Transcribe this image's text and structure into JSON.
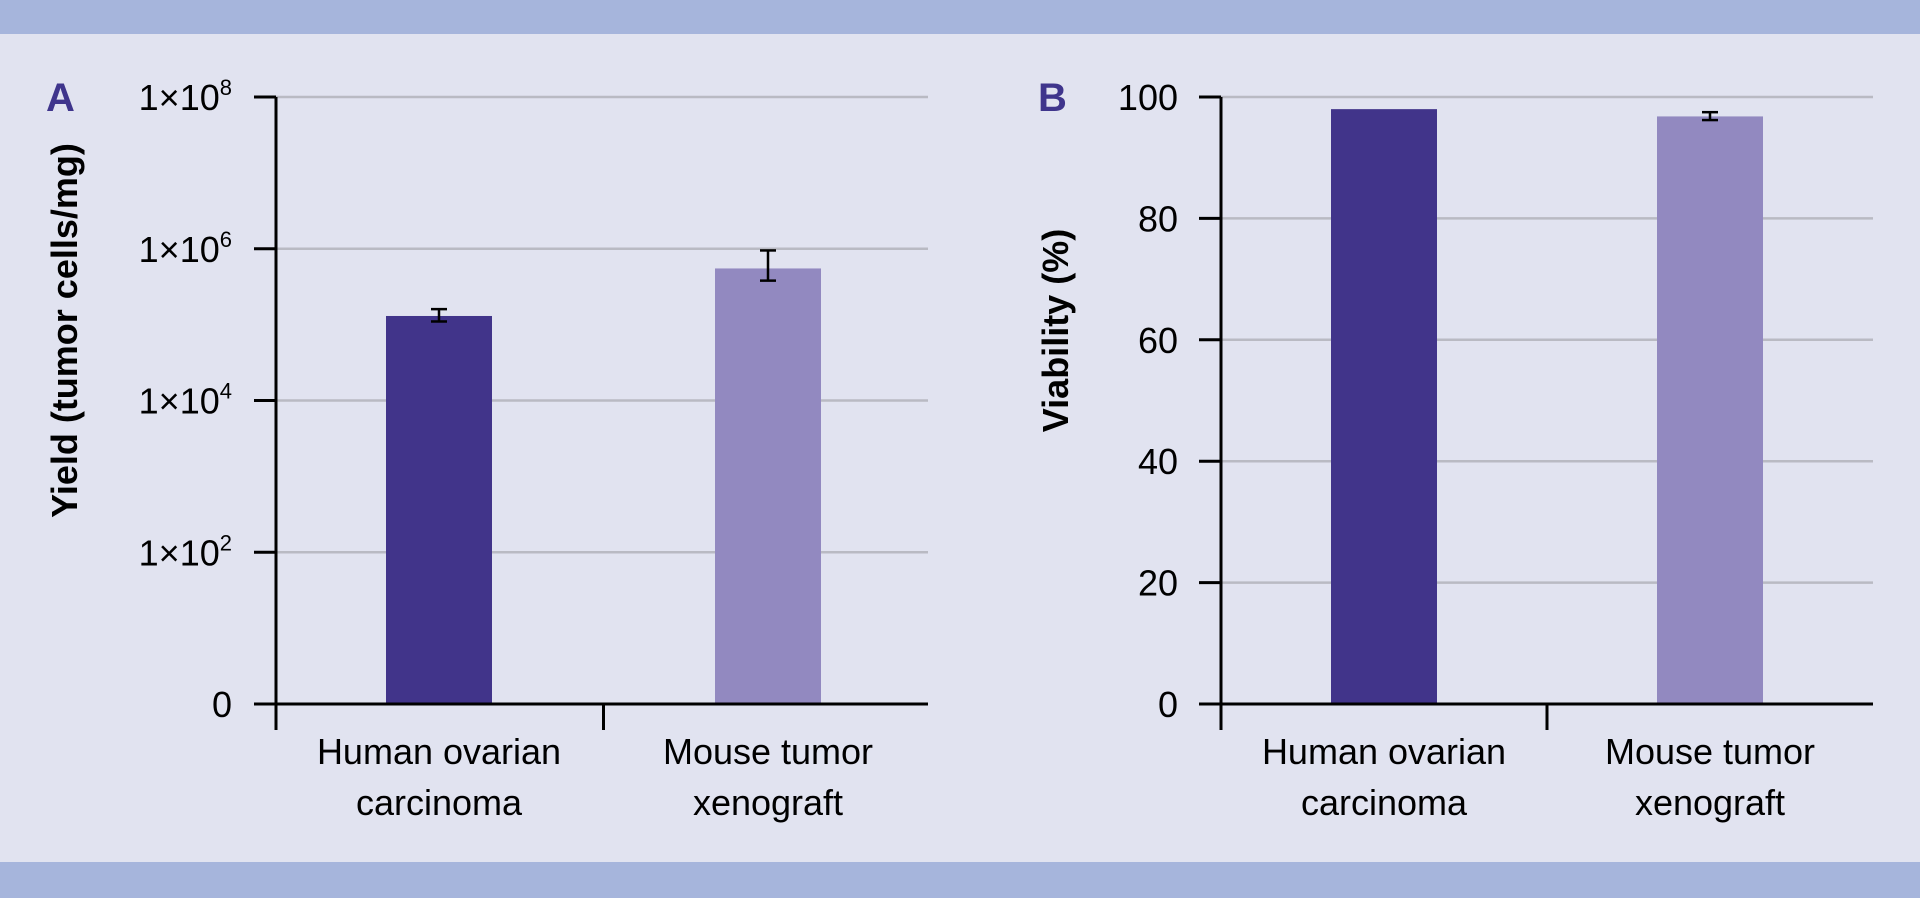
{
  "colors": {
    "background": "#e1e3f0",
    "band": "#a6b5dc",
    "panel_letter": "#3f358c",
    "series_dark": "#41348a",
    "series_light": "#9289c0",
    "gridline": "#b9bac3",
    "axis": "#000000"
  },
  "chart_data": [
    {
      "panel": "A",
      "type": "bar",
      "ylabel": "Yield (tumor cells/mg)",
      "yscale": "log",
      "ytick_labels": [
        {
          "base": "1×10",
          "exp": "8"
        },
        {
          "base": "1×10",
          "exp": "6"
        },
        {
          "base": "1×10",
          "exp": "4"
        },
        {
          "base": "1×10",
          "exp": "2"
        },
        {
          "base": "0",
          "exp": ""
        }
      ],
      "ytick_values": [
        100000000,
        1000000,
        10000,
        100,
        1
      ],
      "ylim": [
        1,
        100000000
      ],
      "categories": [
        {
          "line1": "Human ovarian",
          "line2": "carcinoma"
        },
        {
          "line1": "Mouse tumor",
          "line2": "xenograft"
        }
      ],
      "values": [
        130000,
        550000
      ],
      "error_low": [
        110000,
        380000
      ],
      "error_high": [
        160000,
        950000
      ],
      "grid": true
    },
    {
      "panel": "B",
      "type": "bar",
      "ylabel": "Viability (%)",
      "yscale": "linear",
      "ytick_labels": [
        {
          "base": "100",
          "exp": ""
        },
        {
          "base": "80",
          "exp": ""
        },
        {
          "base": "60",
          "exp": ""
        },
        {
          "base": "40",
          "exp": ""
        },
        {
          "base": "20",
          "exp": ""
        },
        {
          "base": "0",
          "exp": ""
        }
      ],
      "ytick_values": [
        100,
        80,
        60,
        40,
        20,
        0
      ],
      "ylim": [
        0,
        100
      ],
      "categories": [
        {
          "line1": "Human ovarian",
          "line2": "carcinoma"
        },
        {
          "line1": "Mouse tumor",
          "line2": "xenograft"
        }
      ],
      "values": [
        98,
        96.8
      ],
      "error_low": [
        98,
        96.2
      ],
      "error_high": [
        98,
        97.5
      ],
      "grid": true
    }
  ]
}
